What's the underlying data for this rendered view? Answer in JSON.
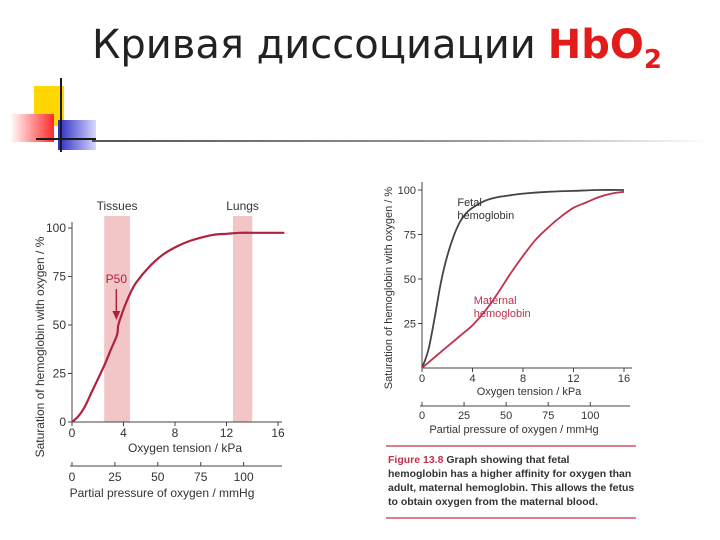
{
  "slide": {
    "title_text": "Кривая диссоциации",
    "title_formula_main": "HbO",
    "title_formula_sub": "2",
    "accent_colors": [
      "#ffd700",
      "#ff3030",
      "#3f3fd0",
      "#1a1a1a"
    ]
  },
  "chart_data": [
    {
      "type": "line",
      "ylabel": "Saturation of hemoglobin with oxygen / %",
      "xlabel": "Oxygen tension / kPa",
      "x2label": "Partial pressure of oxygen / mmHg",
      "xticks": [
        0,
        4,
        8,
        12,
        16
      ],
      "yticks": [
        0,
        25,
        50,
        75,
        100
      ],
      "x2ticks": [
        0,
        25,
        50,
        75,
        100
      ],
      "xlim": [
        0,
        16
      ],
      "ylim": [
        0,
        100
      ],
      "bands": [
        {
          "label": "Tissues",
          "x": [
            2.5,
            4.5
          ]
        },
        {
          "label": "Lungs",
          "x": [
            12.5,
            14.0
          ]
        }
      ],
      "annotation": {
        "label": "P50",
        "x": 3.6,
        "y": 50
      },
      "color": "#b0213f",
      "series": [
        {
          "x": [
            0,
            0.5,
            1,
            1.5,
            2,
            2.5,
            3,
            3.5,
            3.6,
            4,
            4.5,
            5,
            6,
            7,
            8,
            9,
            10,
            11,
            12,
            13,
            14,
            15,
            16.5
          ],
          "y": [
            0,
            3,
            8,
            15,
            22,
            29,
            37,
            45,
            50,
            58,
            66,
            72,
            80,
            86,
            90,
            93,
            95,
            96.5,
            97,
            97.5,
            97.5,
            97.5,
            97.5
          ]
        }
      ]
    },
    {
      "type": "line",
      "ylabel": "Saturation of hemoglobin with oxygen / %",
      "xlabel": "Oxygen tension / kPa",
      "x2label": "Partial pressure of oxygen / mmHg",
      "xticks": [
        0,
        4,
        8,
        12,
        16
      ],
      "yticks": [
        25,
        50,
        75,
        100
      ],
      "x2ticks": [
        0,
        25,
        50,
        75,
        100
      ],
      "xlim": [
        0,
        16
      ],
      "ylim": [
        0,
        100
      ],
      "series": [
        {
          "name": "Fetal hemoglobin",
          "color": "#444444",
          "x": [
            0,
            0.5,
            1,
            1.5,
            2,
            2.5,
            3,
            3.5,
            4,
            5,
            6,
            7,
            8,
            10,
            12,
            14,
            16
          ],
          "y": [
            0,
            10,
            28,
            48,
            63,
            74,
            82,
            87,
            90,
            94,
            96,
            97,
            98,
            99,
            99.5,
            100,
            100
          ]
        },
        {
          "name": "Maternal hemoglobin",
          "color": "#c0304a",
          "x": [
            0,
            1,
            2,
            3,
            4,
            5,
            6,
            7,
            8,
            9,
            10,
            11,
            12,
            13,
            14,
            15,
            16
          ],
          "y": [
            0,
            6,
            12,
            18,
            24,
            32,
            42,
            53,
            63,
            72,
            79,
            85,
            90,
            93,
            96,
            98,
            99
          ]
        }
      ],
      "caption": {
        "label": "Figure 13.8",
        "text": "Graph showing that fetal hemoglobin has a higher affinity for oxygen than adult, maternal hemoglobin. This allows the fetus to obtain oxygen from the maternal blood."
      }
    }
  ]
}
